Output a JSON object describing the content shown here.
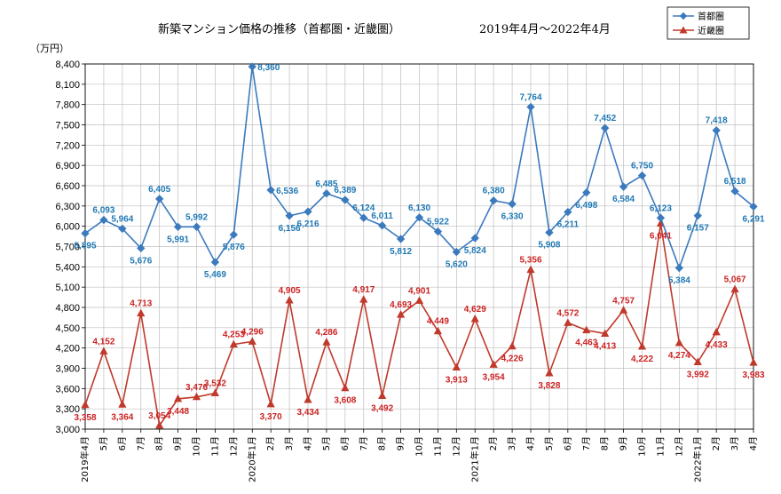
{
  "chart_data": {
    "type": "line",
    "title": "新築マンション価格の推移（首都圏・近畿圏）",
    "subtitle": "2019年4月～2022年4月",
    "ylabel": "（万円）",
    "ylim": [
      3000,
      8400
    ],
    "yticks": [
      "3,000",
      "3,300",
      "3,600",
      "3,900",
      "4,200",
      "4,500",
      "4,800",
      "5,100",
      "5,400",
      "5,700",
      "6,000",
      "6,300",
      "6,600",
      "6,900",
      "7,200",
      "7,500",
      "7,800",
      "8,100",
      "8,400"
    ],
    "ytick_values": [
      3000,
      3300,
      3600,
      3900,
      4200,
      4500,
      4800,
      5100,
      5400,
      5700,
      6000,
      6300,
      6600,
      6900,
      7200,
      7500,
      7800,
      8100,
      8400
    ],
    "categories": [
      "2019年4月",
      "5月",
      "6月",
      "7月",
      "8月",
      "9月",
      "10月",
      "11月",
      "12月",
      "2020年1月",
      "2月",
      "3月",
      "4月",
      "5月",
      "6月",
      "7月",
      "8月",
      "9月",
      "10月",
      "11月",
      "12月",
      "2021年1月",
      "2月",
      "3月",
      "4月",
      "5月",
      "6月",
      "7月",
      "8月",
      "9月",
      "10月",
      "11月",
      "12月",
      "2022年1月",
      "2月",
      "3月",
      "4月"
    ],
    "grid": true,
    "legend_position": "top-right",
    "series": [
      {
        "name": "首都圏",
        "color": "#3a7abd",
        "marker": "diamond",
        "values": [
          5895,
          6093,
          5964,
          5676,
          6405,
          5991,
          5992,
          5469,
          5876,
          8360,
          6536,
          6156,
          6216,
          6485,
          6389,
          6124,
          6011,
          5812,
          6130,
          5922,
          5620,
          5824,
          6380,
          6330,
          7764,
          5908,
          6211,
          6498,
          7452,
          6584,
          6750,
          6123,
          5384,
          6157,
          7418,
          6518,
          6291
        ],
        "labels": [
          "5,895",
          "6,093",
          "5,964",
          "5,676",
          "6,405",
          "5,991",
          "5,992",
          "5,469",
          "5,876",
          "8,360",
          "6,536",
          "6,156",
          "6,216",
          "6,485",
          "6,389",
          "6,124",
          "6,011",
          "5,812",
          "6,130",
          "5,922",
          "5,620",
          "5,824",
          "6,380",
          "6,330",
          "7,764",
          "5,908",
          "6,211",
          "6,498",
          "7,452",
          "6,584",
          "6,750",
          "6,123",
          "5,384",
          "6,157",
          "7,418",
          "6,518",
          "6,291"
        ]
      },
      {
        "name": "近畿圏",
        "color": "#c0392b",
        "marker": "triangle",
        "values": [
          3358,
          4152,
          3364,
          4713,
          3054,
          3448,
          3476,
          3532,
          4253,
          4296,
          3370,
          4905,
          3434,
          4286,
          3608,
          4917,
          3492,
          4693,
          4901,
          4449,
          3913,
          4629,
          3954,
          4226,
          5356,
          3828,
          4572,
          4463,
          4413,
          4757,
          4222,
          6041,
          4274,
          3992,
          4433,
          5067,
          3983
        ],
        "labels": [
          "3,358",
          "4,152",
          "3,364",
          "4,713",
          "3,054",
          "3,448",
          "3,476",
          "3,532",
          "4,253",
          "4,296",
          "3,370",
          "4,905",
          "3,434",
          "4,286",
          "3,608",
          "4,917",
          "3,492",
          "4,693",
          "4,901",
          "4,449",
          "3,913",
          "4,629",
          "3,954",
          "4,226",
          "5,356",
          "3,828",
          "4,572",
          "4,463",
          "4,413",
          "4,757",
          "4,222",
          "6,041",
          "4,274",
          "3,992",
          "4,433",
          "5,067",
          "3,983"
        ]
      }
    ]
  }
}
